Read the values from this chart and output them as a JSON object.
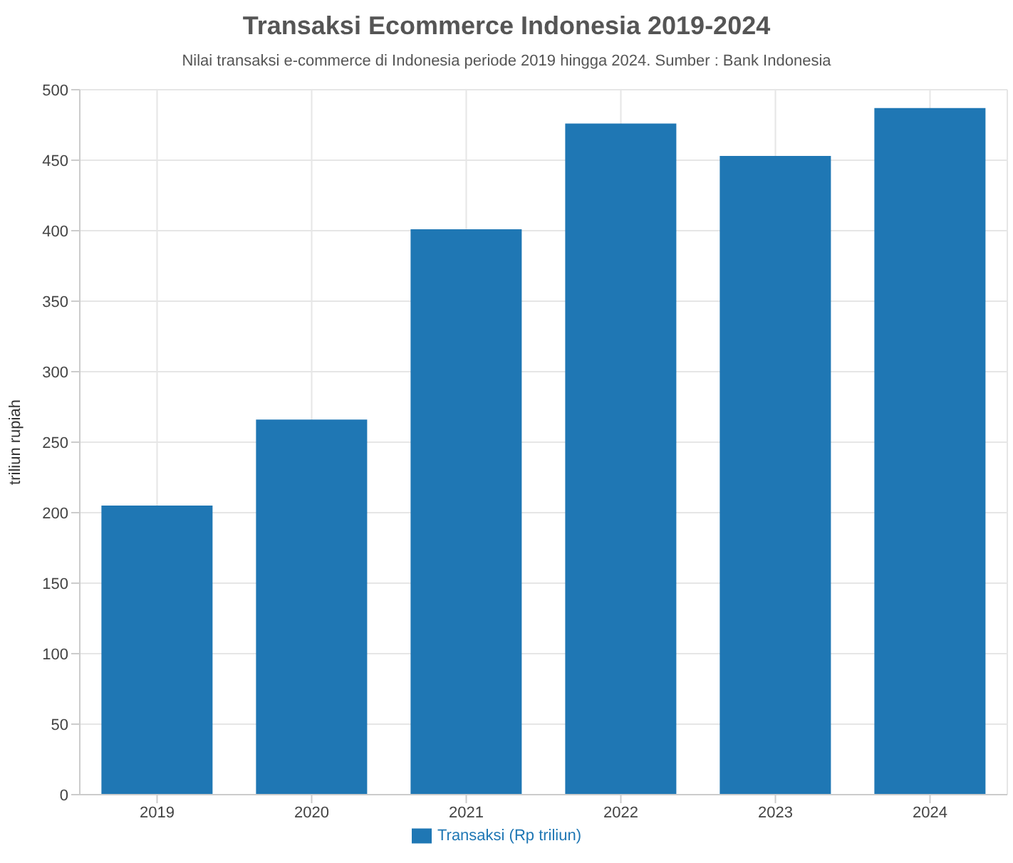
{
  "chart_data": {
    "type": "bar",
    "title": "Transaksi Ecommerce Indonesia 2019-2024",
    "subtitle": "Nilai transaksi e-commerce di Indonesia periode 2019 hingga 2024. Sumber : Bank Indonesia",
    "ylabel": "triliun rupiah",
    "categories": [
      "2019",
      "2020",
      "2021",
      "2022",
      "2023",
      "2024"
    ],
    "series": [
      {
        "name": "Transaksi (Rp triliun)",
        "color": "#1f77b4",
        "values": [
          205,
          266,
          401,
          476,
          453,
          487
        ]
      }
    ],
    "ylim": [
      0,
      500
    ],
    "yticks": [
      0,
      50,
      100,
      150,
      200,
      250,
      300,
      350,
      400,
      450,
      500
    ],
    "grid": true,
    "legend": "bottom"
  }
}
